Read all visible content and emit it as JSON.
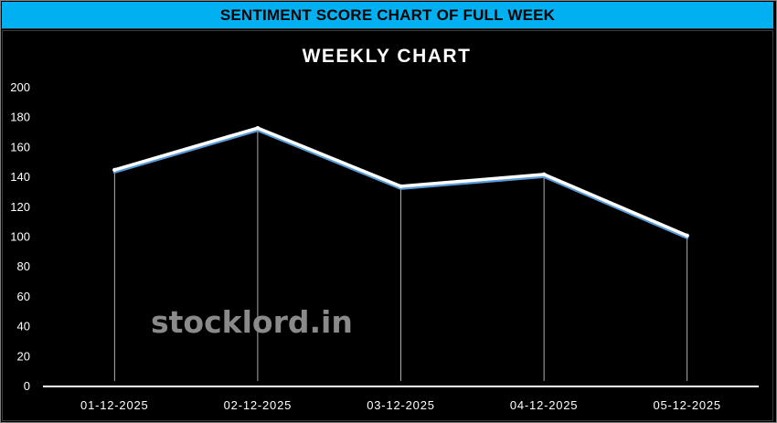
{
  "banner": {
    "title": "SENTIMENT SCORE CHART OF FULL WEEK",
    "background_color": "#00b0f0"
  },
  "watermark": "stocklord.in",
  "chart_data": {
    "type": "line",
    "title": "WEEKLY CHART",
    "xlabel": "",
    "ylabel": "",
    "categories": [
      "01-12-2025",
      "02-12-2025",
      "03-12-2025",
      "04-12-2025",
      "05-12-2025"
    ],
    "series": [
      {
        "values": [
          145,
          173,
          134,
          142,
          101
        ]
      }
    ],
    "ylim": [
      0,
      200
    ],
    "yticks": [
      0,
      20,
      40,
      60,
      80,
      100,
      120,
      140,
      160,
      180,
      200
    ],
    "drop_lines": true,
    "grid": false,
    "legend": "none",
    "colors": {
      "background": "#000000",
      "line": "#ffffff",
      "line_shadow": "#5b9bd5",
      "text": "#ffffff",
      "axis": "#ffffff"
    }
  }
}
